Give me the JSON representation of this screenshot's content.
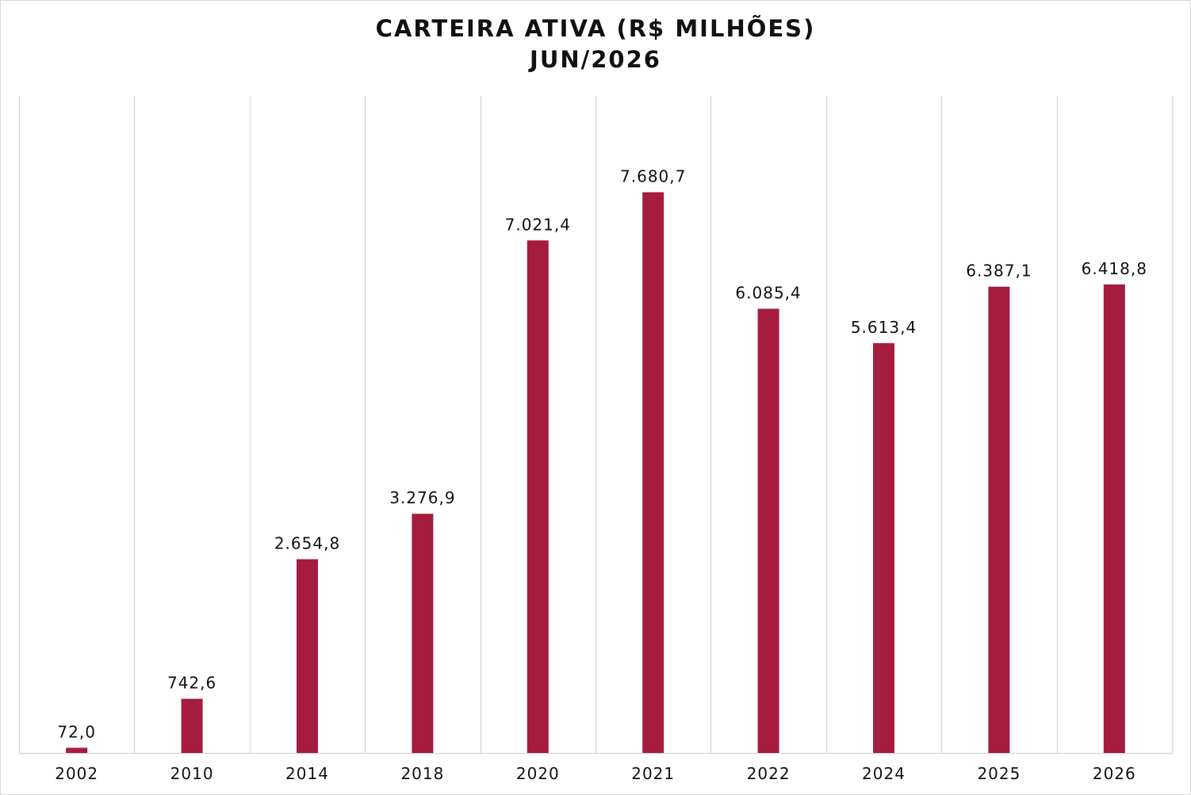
{
  "chart_data": {
    "type": "bar",
    "title": "CARTEIRA ATIVA (R$ MILHÕES)",
    "subtitle": "JUN/2026",
    "categories": [
      "2002",
      "2010",
      "2014",
      "2018",
      "2020",
      "2021",
      "2022",
      "2024",
      "2025",
      "2026"
    ],
    "values": [
      72.0,
      742.6,
      2654.8,
      3276.9,
      7021.4,
      7680.7,
      6085.4,
      5613.4,
      6387.1,
      6418.8
    ],
    "value_labels": [
      "72,0",
      "742,6",
      "2.654,8",
      "3.276,9",
      "7.021,4",
      "7.680,7",
      "6.085,4",
      "5.613,4",
      "6.387,1",
      "6.418,8"
    ],
    "xlabel": "",
    "ylabel": "",
    "ylim": [
      0,
      9000
    ],
    "grid": "vertical",
    "legend": "none",
    "bar_color": "#A51C3F",
    "grid_color": "#d9d9d9"
  }
}
